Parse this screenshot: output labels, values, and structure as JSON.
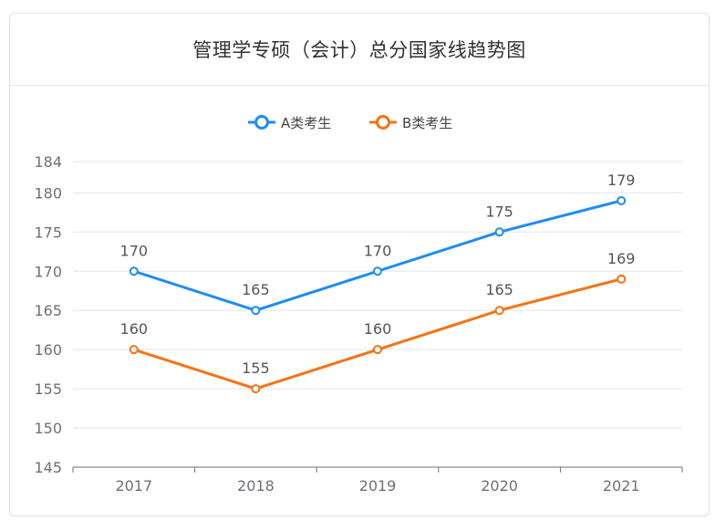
{
  "header": {
    "title": "管理学专硕（会计）总分国家线趋势图"
  },
  "chart_data": {
    "type": "line",
    "title": "管理学专硕（会计）总分国家线趋势图",
    "categories": [
      "2017",
      "2018",
      "2019",
      "2020",
      "2021"
    ],
    "series": [
      {
        "name": "A类考生",
        "color": "#1e8cf0",
        "values": [
          170,
          165,
          170,
          175,
          179
        ]
      },
      {
        "name": "B类考生",
        "color": "#f57314",
        "values": [
          160,
          155,
          160,
          165,
          169
        ]
      }
    ],
    "yticks": [
      145,
      150,
      155,
      160,
      165,
      170,
      175,
      180,
      184
    ],
    "ylim": [
      145,
      184
    ],
    "grid": true,
    "legend_position": "top-center",
    "xlabel": "",
    "ylabel": ""
  }
}
